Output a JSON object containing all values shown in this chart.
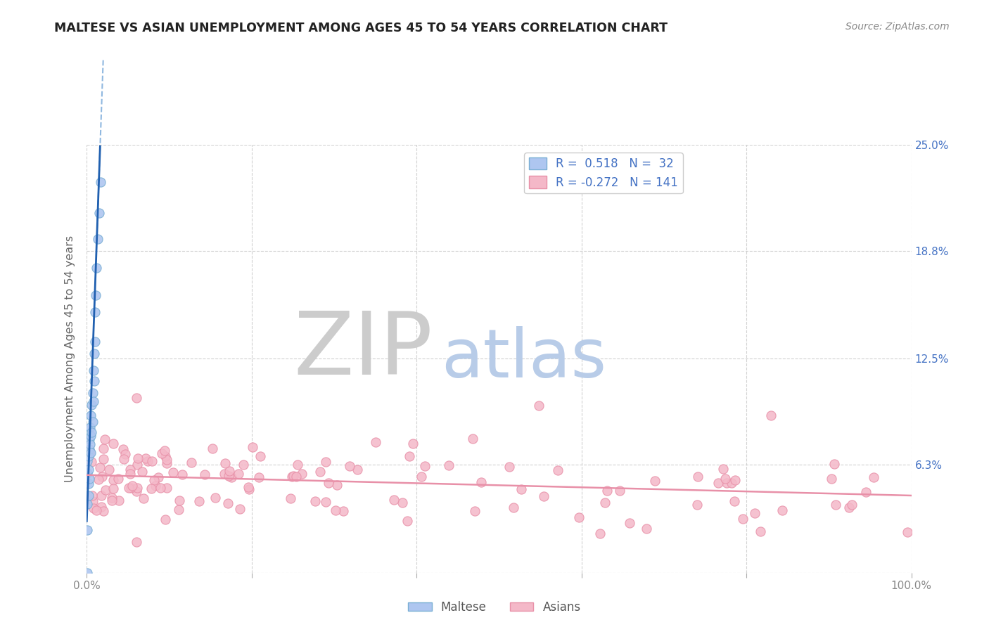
{
  "title": "MALTESE VS ASIAN UNEMPLOYMENT AMONG AGES 45 TO 54 YEARS CORRELATION CHART",
  "source": "Source: ZipAtlas.com",
  "ylabel": "Unemployment Among Ages 45 to 54 years",
  "maltese_face": "#aec6f0",
  "maltese_edge": "#7aafd4",
  "asian_face": "#f4b8c8",
  "asian_edge": "#e890a8",
  "trend_maltese_color": "#2060b0",
  "trend_maltese_dash_color": "#90b8e0",
  "trend_asian_color": "#e890a8",
  "background_color": "#ffffff",
  "ylim": [
    0,
    0.25
  ],
  "xlim": [
    0.0,
    1.0
  ],
  "y_tick_positions": [
    0,
    0.063,
    0.125,
    0.188,
    0.25
  ],
  "y_tick_labels": [
    "",
    "6.3%",
    "12.5%",
    "18.8%",
    "25.0%"
  ],
  "x_tick_positions": [
    0.0,
    0.2,
    0.4,
    0.6,
    0.8,
    1.0
  ],
  "x_tick_labels": [
    "0.0%",
    "",
    "",
    "",
    "",
    "100.0%"
  ],
  "legend_r1": "R =  0.518   N =  32",
  "legend_r2": "R = -0.272   N = 141",
  "bottom_legend_1": "Maltese",
  "bottom_legend_2": "Asians",
  "watermark_zip": "ZIP",
  "watermark_atlas": "atlas",
  "watermark_zip_color": "#cccccc",
  "watermark_atlas_color": "#b8cce8",
  "legend_blue": "#4472c4",
  "title_color": "#222222",
  "source_color": "#888888",
  "ylabel_color": "#666666",
  "grid_color": "#cccccc",
  "tick_label_color": "#888888",
  "right_tick_color": "#4472c4"
}
